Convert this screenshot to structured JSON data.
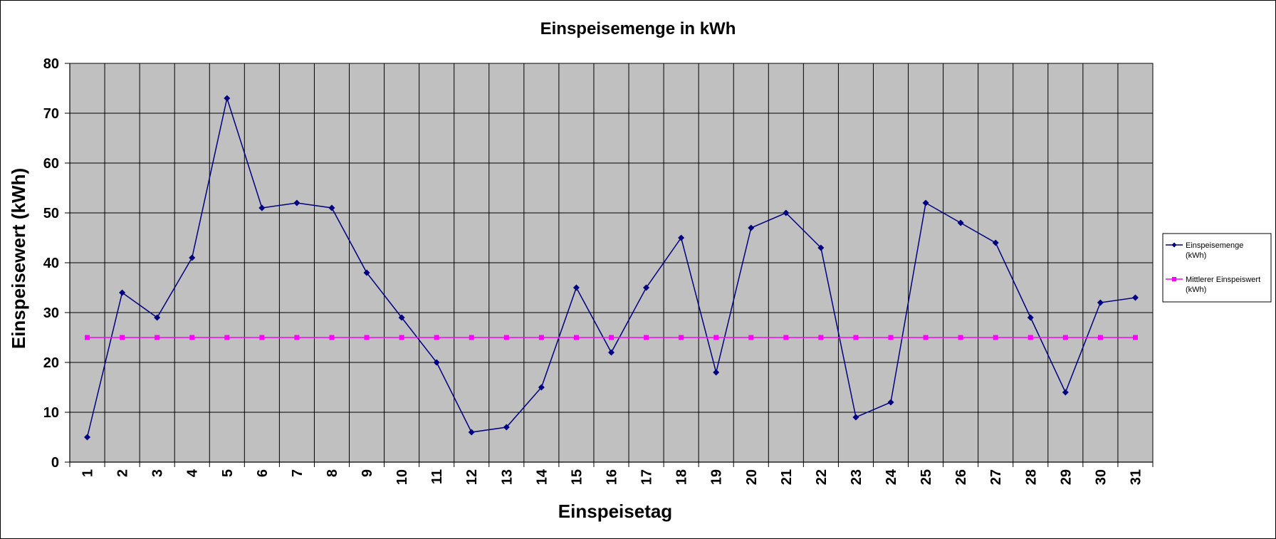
{
  "chart_data": {
    "type": "line",
    "title": "Einspeisemenge in kWh",
    "xlabel": "Einspeisetag",
    "ylabel": "Einspeisewert  (kWh)",
    "categories": [
      "1",
      "2",
      "3",
      "4",
      "5",
      "6",
      "7",
      "8",
      "9",
      "10",
      "11",
      "12",
      "13",
      "14",
      "15",
      "16",
      "17",
      "18",
      "19",
      "20",
      "21",
      "22",
      "23",
      "24",
      "25",
      "26",
      "27",
      "28",
      "29",
      "30",
      "31"
    ],
    "ylim": [
      0,
      80
    ],
    "yticks": [
      "0",
      "10",
      "20",
      "30",
      "40",
      "50",
      "60",
      "70",
      "80"
    ],
    "grid": true,
    "legend_position": "right",
    "plot_background": "#c0c0c0",
    "series": [
      {
        "name": "Einspeisemenge",
        "name_unit": "(kWh)",
        "color": "#000080",
        "marker": "diamond",
        "values": [
          5,
          34,
          29,
          41,
          73,
          51,
          52,
          51,
          38,
          29,
          20,
          6,
          7,
          15,
          35,
          22,
          35,
          45,
          18,
          47,
          50,
          43,
          9,
          12,
          52,
          48,
          44,
          29,
          14,
          32,
          33
        ]
      },
      {
        "name": "Mittlerer Einspeiswert",
        "name_unit": "(kWh)",
        "color": "#ff00ff",
        "marker": "square",
        "values": [
          25,
          25,
          25,
          25,
          25,
          25,
          25,
          25,
          25,
          25,
          25,
          25,
          25,
          25,
          25,
          25,
          25,
          25,
          25,
          25,
          25,
          25,
          25,
          25,
          25,
          25,
          25,
          25,
          25,
          25,
          25
        ]
      }
    ]
  }
}
